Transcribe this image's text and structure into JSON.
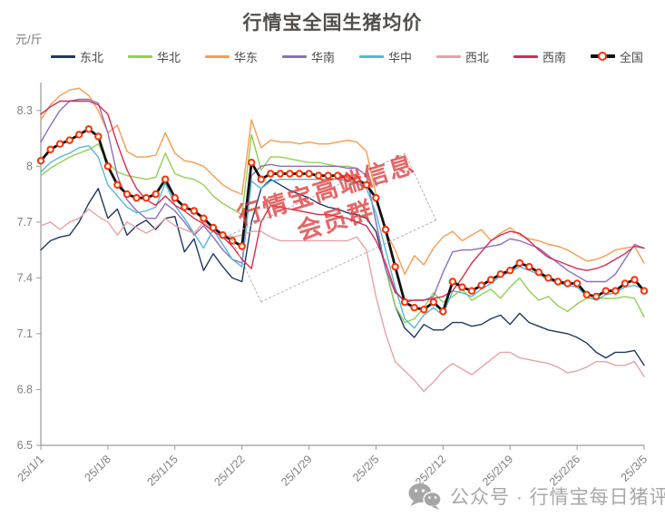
{
  "title": "行情宝全国生猪均价",
  "unit_label": "元/斤",
  "watermark": {
    "line1": "行情宝高端信息",
    "line2": "会员群"
  },
  "footer": {
    "icon": "wechat-icon",
    "label": "公众号 · 行情宝每日猪评"
  },
  "colors": {
    "axis": "#9a9a9a",
    "tick_label": "#808080",
    "national_marker": "#fe3000",
    "watermark_red": "#de3c3c",
    "title_gray": "#534e4a"
  },
  "chart_data": {
    "type": "line",
    "title": "行情宝全国生猪均价",
    "ylabel": "元/斤",
    "ylim": [
      6.5,
      8.45
    ],
    "yticks": [
      {
        "value": 6.5,
        "label": "6.5"
      },
      {
        "value": 6.8,
        "label": "6.8"
      },
      {
        "value": 7.1,
        "label": "7.1"
      },
      {
        "value": 7.4,
        "label": "7.4"
      },
      {
        "value": 7.7,
        "label": "7.7"
      },
      {
        "value": 8.0,
        "label": "8"
      },
      {
        "value": 8.3,
        "label": "8.3"
      }
    ],
    "grid": false,
    "legend_position": "top",
    "x": [
      "25/1/1",
      "25/1/2",
      "25/1/3",
      "25/1/4",
      "25/1/5",
      "25/1/6",
      "25/1/7",
      "25/1/8",
      "25/1/9",
      "25/1/10",
      "25/1/11",
      "25/1/12",
      "25/1/13",
      "25/1/14",
      "25/1/15",
      "25/1/16",
      "25/1/17",
      "25/1/18",
      "25/1/19",
      "25/1/20",
      "25/1/21",
      "25/1/22",
      "25/1/23",
      "25/1/24",
      "25/1/25",
      "25/1/26",
      "25/1/27",
      "25/1/28",
      "25/1/29",
      "25/1/30",
      "25/1/31",
      "25/2/1",
      "25/2/2",
      "25/2/3",
      "25/2/4",
      "25/2/5",
      "25/2/6",
      "25/2/7",
      "25/2/8",
      "25/2/9",
      "25/2/10",
      "25/2/11",
      "25/2/12",
      "25/2/13",
      "25/2/14",
      "25/2/15",
      "25/2/16",
      "25/2/17",
      "25/2/18",
      "25/2/19",
      "25/2/20",
      "25/2/21",
      "25/2/22",
      "25/2/23",
      "25/2/24",
      "25/2/25",
      "25/2/26",
      "25/2/27",
      "25/2/28",
      "25/3/1",
      "25/3/2",
      "25/3/3",
      "25/3/4",
      "25/3/5"
    ],
    "x_tick_indices": [
      0,
      7,
      14,
      21,
      28,
      35,
      42,
      49,
      56,
      63
    ],
    "series": [
      {
        "name": "东北",
        "key": "dongbei",
        "color": "#1f3864",
        "marker": false,
        "values": [
          7.55,
          7.6,
          7.62,
          7.63,
          7.7,
          7.8,
          7.88,
          7.72,
          7.77,
          7.63,
          7.68,
          7.71,
          7.66,
          7.72,
          7.73,
          7.54,
          7.61,
          7.44,
          7.53,
          7.46,
          7.4,
          7.38,
          7.7,
          7.88,
          7.93,
          7.9,
          7.87,
          7.85,
          7.83,
          7.8,
          7.78,
          7.77,
          7.75,
          7.74,
          7.72,
          7.65,
          7.45,
          7.25,
          7.13,
          7.08,
          7.15,
          7.12,
          7.12,
          7.16,
          7.16,
          7.14,
          7.15,
          7.18,
          7.2,
          7.15,
          7.21,
          7.16,
          7.14,
          7.12,
          7.11,
          7.1,
          7.08,
          7.05,
          7.0,
          6.97,
          7.0,
          7.0,
          7.01,
          6.93
        ]
      },
      {
        "name": "华北",
        "key": "huabei",
        "color": "#92d050",
        "marker": false,
        "values": [
          7.95,
          7.99,
          8.02,
          8.05,
          8.07,
          8.09,
          8.12,
          8.02,
          7.97,
          7.95,
          7.94,
          7.93,
          7.94,
          8.07,
          7.96,
          7.94,
          7.93,
          7.9,
          7.84,
          7.8,
          7.77,
          7.74,
          8.17,
          7.98,
          8.05,
          8.05,
          8.04,
          8.03,
          8.02,
          8.02,
          8.01,
          8.0,
          8.0,
          7.99,
          7.95,
          7.7,
          7.45,
          7.25,
          7.16,
          7.18,
          7.24,
          7.32,
          7.27,
          7.3,
          7.34,
          7.28,
          7.31,
          7.34,
          7.29,
          7.35,
          7.4,
          7.33,
          7.28,
          7.3,
          7.25,
          7.22,
          7.26,
          7.29,
          7.29,
          7.29,
          7.29,
          7.3,
          7.29,
          7.19
        ]
      },
      {
        "name": "华东",
        "key": "huadong",
        "color": "#f89c4f",
        "marker": false,
        "values": [
          8.25,
          8.33,
          8.38,
          8.41,
          8.42,
          8.38,
          8.3,
          8.18,
          8.22,
          8.08,
          8.05,
          8.05,
          8.06,
          8.18,
          8.07,
          8.03,
          8.02,
          8.0,
          7.95,
          7.9,
          7.87,
          7.85,
          8.25,
          8.1,
          8.14,
          8.13,
          8.13,
          8.12,
          8.13,
          8.12,
          8.12,
          8.13,
          8.14,
          8.13,
          8.08,
          7.85,
          7.65,
          7.55,
          7.42,
          7.52,
          7.47,
          7.56,
          7.62,
          7.65,
          7.6,
          7.63,
          7.66,
          7.6,
          7.64,
          7.67,
          7.63,
          7.61,
          7.6,
          7.58,
          7.57,
          7.55,
          7.52,
          7.49,
          7.5,
          7.52,
          7.55,
          7.56,
          7.57,
          7.48
        ]
      },
      {
        "name": "华南",
        "key": "huanan",
        "color": "#8f6dbf",
        "marker": false,
        "values": [
          8.13,
          8.22,
          8.3,
          8.35,
          8.36,
          8.36,
          8.34,
          8.18,
          7.95,
          7.82,
          7.76,
          7.72,
          7.72,
          7.8,
          7.76,
          7.7,
          7.63,
          7.68,
          7.62,
          7.55,
          7.5,
          7.48,
          7.95,
          8.0,
          8.01,
          8.0,
          8.0,
          8.0,
          8.0,
          8.0,
          8.0,
          8.0,
          7.99,
          7.99,
          7.95,
          7.7,
          7.45,
          7.32,
          7.28,
          7.28,
          7.28,
          7.3,
          7.43,
          7.54,
          7.55,
          7.55,
          7.56,
          7.57,
          7.58,
          7.61,
          7.6,
          7.58,
          7.56,
          7.52,
          7.48,
          7.44,
          7.41,
          7.38,
          7.38,
          7.38,
          7.42,
          7.5,
          7.58,
          7.56
        ]
      },
      {
        "name": "华中",
        "key": "huazhong",
        "color": "#55b7d9",
        "marker": false,
        "values": [
          7.97,
          8.02,
          8.05,
          8.07,
          8.1,
          8.11,
          8.05,
          7.9,
          7.84,
          7.78,
          7.75,
          7.76,
          7.78,
          7.91,
          7.79,
          7.72,
          7.64,
          7.56,
          7.66,
          7.58,
          7.5,
          7.46,
          7.92,
          7.88,
          7.92,
          7.93,
          7.93,
          7.93,
          7.93,
          7.93,
          7.93,
          7.93,
          7.92,
          7.91,
          7.88,
          7.75,
          7.55,
          7.35,
          7.18,
          7.13,
          7.2,
          7.24,
          7.2,
          7.33,
          7.32,
          7.3,
          7.34,
          7.37,
          7.41,
          7.43,
          7.46,
          7.44,
          7.42,
          7.39,
          7.37,
          7.36,
          7.35,
          7.3,
          7.28,
          7.31,
          7.32,
          7.35,
          7.36,
          7.34
        ]
      },
      {
        "name": "西北",
        "key": "xibei",
        "color": "#e8a2a4",
        "marker": false,
        "values": [
          7.68,
          7.7,
          7.66,
          7.7,
          7.72,
          7.77,
          7.73,
          7.7,
          7.63,
          7.7,
          7.67,
          7.64,
          7.67,
          7.72,
          7.68,
          7.66,
          7.64,
          7.7,
          7.66,
          7.63,
          7.62,
          7.63,
          7.65,
          7.65,
          7.62,
          7.6,
          7.6,
          7.6,
          7.6,
          7.6,
          7.6,
          7.6,
          7.6,
          7.62,
          7.55,
          7.3,
          7.1,
          6.95,
          6.9,
          6.85,
          6.79,
          6.84,
          6.9,
          6.94,
          6.91,
          6.88,
          6.92,
          6.96,
          7.0,
          7.0,
          6.97,
          6.96,
          6.95,
          6.94,
          6.92,
          6.89,
          6.9,
          6.92,
          6.95,
          6.95,
          6.93,
          6.93,
          6.95,
          6.87
        ]
      },
      {
        "name": "西南",
        "key": "xinan",
        "color": "#d92a51",
        "marker": false,
        "values": [
          8.28,
          8.32,
          8.35,
          8.35,
          8.35,
          8.35,
          8.33,
          8.28,
          8.12,
          7.98,
          7.88,
          7.82,
          7.79,
          7.84,
          7.79,
          7.76,
          7.72,
          7.69,
          7.65,
          7.62,
          7.57,
          7.5,
          7.45,
          7.7,
          7.79,
          7.78,
          7.77,
          7.76,
          7.75,
          7.74,
          7.74,
          7.73,
          7.72,
          7.7,
          7.68,
          7.6,
          7.48,
          7.33,
          7.27,
          7.28,
          7.28,
          7.29,
          7.3,
          7.33,
          7.4,
          7.48,
          7.54,
          7.6,
          7.63,
          7.65,
          7.64,
          7.6,
          7.55,
          7.51,
          7.49,
          7.47,
          7.45,
          7.44,
          7.45,
          7.47,
          7.5,
          7.53,
          7.57,
          7.56
        ]
      },
      {
        "name": "全国",
        "key": "quanguo",
        "color": "#111111",
        "marker": true,
        "marker_color": "#fe3000",
        "values": [
          8.03,
          8.09,
          8.12,
          8.14,
          8.17,
          8.2,
          8.16,
          8.0,
          7.9,
          7.85,
          7.83,
          7.83,
          7.85,
          7.93,
          7.83,
          7.78,
          7.76,
          7.72,
          7.67,
          7.63,
          7.6,
          7.57,
          8.02,
          7.93,
          7.96,
          7.96,
          7.96,
          7.96,
          7.96,
          7.95,
          7.95,
          7.95,
          7.94,
          7.93,
          7.9,
          7.83,
          7.66,
          7.46,
          7.27,
          7.24,
          7.23,
          7.27,
          7.22,
          7.38,
          7.35,
          7.33,
          7.36,
          7.39,
          7.42,
          7.44,
          7.48,
          7.46,
          7.43,
          7.4,
          7.38,
          7.37,
          7.37,
          7.31,
          7.3,
          7.33,
          7.33,
          7.37,
          7.39,
          7.33
        ]
      }
    ]
  }
}
